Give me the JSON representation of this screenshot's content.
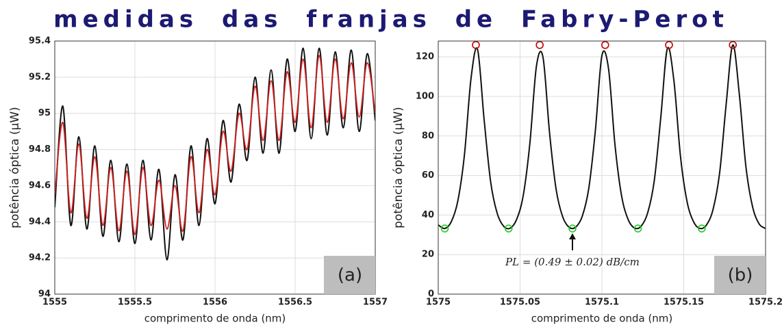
{
  "title": "medidas das franjas de Fabry-Perot",
  "chart_data": [
    {
      "type": "line",
      "xlabel": "comprimento de onda (nm)",
      "ylabel": "potência óptica (μW)",
      "panel_label": "(a)",
      "xlim": [
        1555,
        1557
      ],
      "xticks": [
        1555,
        1555.5,
        1556,
        1556.5,
        1557
      ],
      "ylim": [
        94,
        95.4
      ],
      "yticks": [
        94,
        94.2,
        94.4,
        94.6,
        94.8,
        95,
        95.2,
        95.4
      ],
      "grid": true,
      "x": [
        1555,
        1555.05,
        1555.1,
        1555.15,
        1555.2,
        1555.25,
        1555.3,
        1555.35,
        1555.4,
        1555.45,
        1555.5,
        1555.55,
        1555.6,
        1555.65,
        1555.7,
        1555.75,
        1555.8,
        1555.85,
        1555.9,
        1555.95,
        1556,
        1556.05,
        1556.1,
        1556.15,
        1556.2,
        1556.25,
        1556.3,
        1556.35,
        1556.4,
        1556.45,
        1556.5,
        1556.55,
        1556.6,
        1556.65,
        1556.7,
        1556.75,
        1556.8,
        1556.85,
        1556.9,
        1556.95,
        1557
      ],
      "series": [
        {
          "color": "#111111",
          "values": [
            94.48,
            95.04,
            94.38,
            94.87,
            94.36,
            94.82,
            94.32,
            94.74,
            94.29,
            94.72,
            94.28,
            94.74,
            94.3,
            94.69,
            94.19,
            94.66,
            94.3,
            94.82,
            94.38,
            94.86,
            94.5,
            94.96,
            94.62,
            95.05,
            94.74,
            95.2,
            94.78,
            95.24,
            94.78,
            95.3,
            94.9,
            95.36,
            94.86,
            95.36,
            94.88,
            95.34,
            94.92,
            95.35,
            94.9,
            95.33,
            94.96
          ]
        },
        {
          "color": "#d42020",
          "values": [
            94.55,
            94.95,
            94.45,
            94.83,
            94.42,
            94.76,
            94.38,
            94.7,
            94.35,
            94.68,
            94.33,
            94.7,
            94.38,
            94.63,
            94.36,
            94.6,
            94.35,
            94.76,
            94.45,
            94.8,
            94.55,
            94.9,
            94.68,
            95.0,
            94.8,
            95.15,
            94.85,
            95.18,
            94.85,
            95.23,
            94.95,
            95.3,
            94.92,
            95.32,
            94.95,
            95.3,
            94.97,
            95.28,
            94.98,
            95.28,
            95.0
          ]
        }
      ]
    },
    {
      "type": "line",
      "xlabel": "comprimento de onda (nm)",
      "ylabel": "potência óptica (μW)",
      "panel_label": "(b)",
      "annotation": "PL = (0.49 ± 0.02) dB/cm",
      "xlim": [
        1575,
        1575.2
      ],
      "xticks": [
        1575,
        1575.05,
        1575.1,
        1575.15,
        1575.2
      ],
      "ylim": [
        0,
        128
      ],
      "yticks": [
        0,
        20,
        40,
        60,
        80,
        100,
        120
      ],
      "grid": true,
      "x": [
        1575,
        1575.004,
        1575.008,
        1575.012,
        1575.016,
        1575.02,
        1575.024,
        1575.028,
        1575.032,
        1575.036,
        1575.04,
        1575.044,
        1575.048,
        1575.052,
        1575.056,
        1575.06,
        1575.064,
        1575.068,
        1575.072,
        1575.076,
        1575.08,
        1575.084,
        1575.088,
        1575.092,
        1575.096,
        1575.1,
        1575.104,
        1575.108,
        1575.112,
        1575.116,
        1575.12,
        1575.124,
        1575.128,
        1575.132,
        1575.136,
        1575.14,
        1575.144,
        1575.148,
        1575.152,
        1575.156,
        1575.16,
        1575.164,
        1575.168,
        1575.172,
        1575.176,
        1575.18,
        1575.184,
        1575.188,
        1575.192,
        1575.196,
        1575.2
      ],
      "series": [
        {
          "color": "#111111",
          "values": [
            35.0,
            33.2,
            36.7,
            47.3,
            70.4,
            108.9,
            123.8,
            88.5,
            56.9,
            40.9,
            34.3,
            33.4,
            38.0,
            50.2,
            76.4,
            115.3,
            119.8,
            81.7,
            53.1,
            39.2,
            33.8,
            33.9,
            39.4,
            53.6,
            82.7,
            120.6,
            114.3,
            75.4,
            49.8,
            37.8,
            33.4,
            34.4,
            41.2,
            57.4,
            89.6,
            124.2,
            107.9,
            69.7,
            46.9,
            36.6,
            33.2,
            35.1,
            43.1,
            61.8,
            96.7,
            126.0,
            100.8,
            64.4,
            44.4,
            35.6,
            33.2
          ]
        }
      ],
      "markers": [
        {
          "color": "#c00000",
          "x": [
            1575.023,
            1575.062,
            1575.102,
            1575.141,
            1575.18
          ],
          "values": [
            126,
            126,
            126,
            126,
            126
          ]
        },
        {
          "color": "#22cc22",
          "x": [
            1575.004,
            1575.043,
            1575.082,
            1575.122,
            1575.161
          ],
          "values": [
            33.2,
            33.2,
            33.2,
            33.2,
            33.2
          ]
        }
      ]
    }
  ]
}
